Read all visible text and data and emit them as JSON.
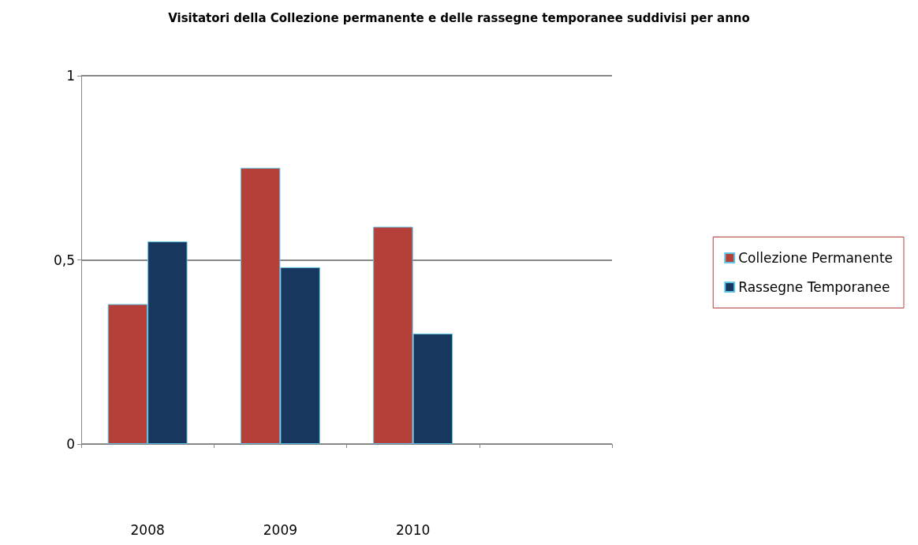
{
  "chart_data": {
    "type": "bar",
    "title": "Visitatori della Collezione permanente e delle rassegne temporanee suddivisi per anno",
    "categories": [
      "2008",
      "2009",
      "2010",
      null
    ],
    "series": [
      {
        "name": "Collezione Permanente",
        "color": "#b5403a",
        "values": [
          0.38,
          0.75,
          0.59,
          null
        ]
      },
      {
        "name": "Rassegne Temporanee",
        "color": "#17375e",
        "values": [
          0.55,
          0.48,
          0.3,
          null
        ]
      }
    ],
    "ylim": [
      0,
      1
    ],
    "yticks": [
      0,
      {
        "value": 0.5,
        "label": "0,5"
      },
      1
    ],
    "grid": "y",
    "legend": "right"
  }
}
